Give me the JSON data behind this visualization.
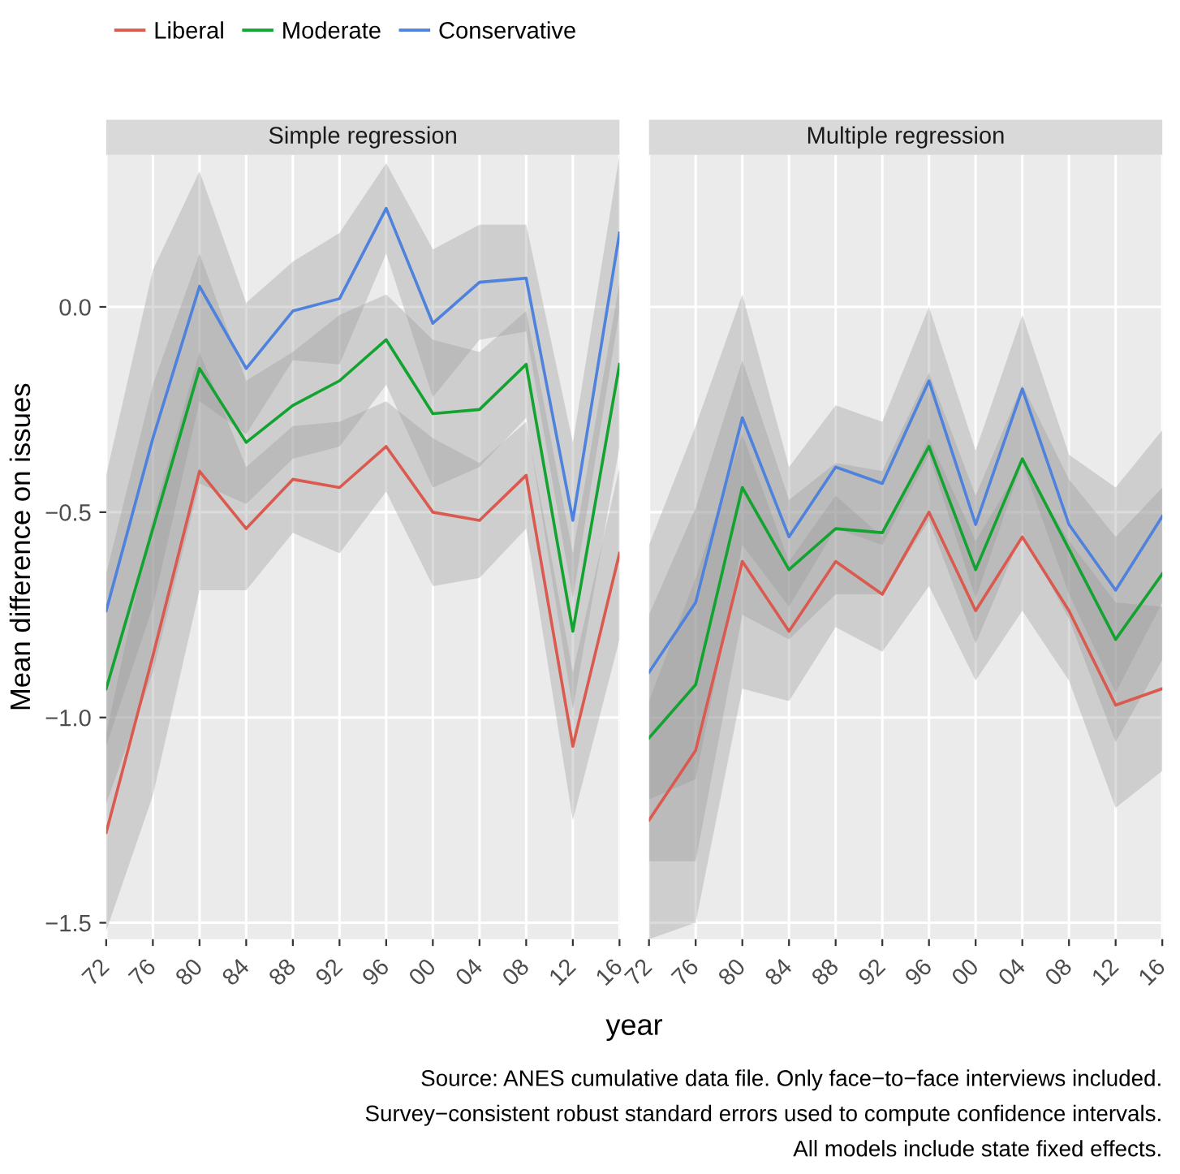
{
  "chart_data": [
    {
      "type": "line",
      "title": "Simple regression",
      "xlabel": "year",
      "ylabel": "Mean difference on issues",
      "legend": "top",
      "grid": true,
      "x": [
        1972,
        1976,
        1980,
        1984,
        1988,
        1992,
        1996,
        2000,
        2004,
        2008,
        2012,
        2016
      ],
      "xlim": [
        1972,
        2016
      ],
      "ylim": [
        -1.54,
        0.37
      ],
      "xticks": [
        {
          "value": 1972,
          "label": "72"
        },
        {
          "value": 1976,
          "label": "76"
        },
        {
          "value": 1980,
          "label": "80"
        },
        {
          "value": 1984,
          "label": "84"
        },
        {
          "value": 1988,
          "label": "88"
        },
        {
          "value": 1992,
          "label": "92"
        },
        {
          "value": 1996,
          "label": "96"
        },
        {
          "value": 2000,
          "label": "00"
        },
        {
          "value": 2004,
          "label": "04"
        },
        {
          "value": 2008,
          "label": "08"
        },
        {
          "value": 2012,
          "label": "12"
        },
        {
          "value": 2016,
          "label": "16"
        }
      ],
      "yticks": [
        {
          "value": -1.5,
          "label": "−1.5"
        },
        {
          "value": -1.0,
          "label": "−1.0"
        },
        {
          "value": -0.5,
          "label": "−0.5"
        },
        {
          "value": 0.0,
          "label": "0.0"
        }
      ],
      "series": [
        {
          "name": "Liberal",
          "color": "#db5a4f",
          "values": [
            -1.28,
            -0.85,
            -0.4,
            -0.54,
            -0.42,
            -0.44,
            -0.34,
            -0.5,
            -0.52,
            -0.41,
            -1.07,
            -0.6
          ],
          "lower": [
            -1.52,
            -1.19,
            -0.69,
            -0.69,
            -0.55,
            -0.6,
            -0.45,
            -0.68,
            -0.66,
            -0.54,
            -1.25,
            -0.81
          ],
          "upper": [
            -1.04,
            -0.51,
            -0.11,
            -0.39,
            -0.29,
            -0.28,
            -0.23,
            -0.32,
            -0.38,
            -0.28,
            -0.89,
            -0.39
          ]
        },
        {
          "name": "Moderate",
          "color": "#13a330",
          "values": [
            -0.93,
            -0.54,
            -0.15,
            -0.33,
            -0.24,
            -0.18,
            -0.08,
            -0.26,
            -0.25,
            -0.14,
            -0.79,
            -0.14
          ],
          "lower": [
            -1.21,
            -0.89,
            -0.43,
            -0.48,
            -0.37,
            -0.34,
            -0.19,
            -0.44,
            -0.39,
            -0.27,
            -0.98,
            -0.34
          ],
          "upper": [
            -0.65,
            -0.19,
            0.13,
            -0.18,
            -0.11,
            -0.02,
            0.03,
            -0.08,
            -0.11,
            -0.01,
            -0.6,
            0.06
          ]
        },
        {
          "name": "Conservative",
          "color": "#4f82dc",
          "values": [
            -0.74,
            -0.32,
            0.05,
            -0.15,
            -0.01,
            0.02,
            0.24,
            -0.04,
            0.06,
            0.07,
            -0.52,
            0.18
          ],
          "lower": [
            -1.07,
            -0.73,
            -0.23,
            -0.31,
            -0.13,
            -0.14,
            0.13,
            -0.22,
            -0.08,
            -0.06,
            -0.71,
            -0.01
          ],
          "upper": [
            -0.41,
            0.09,
            0.33,
            0.01,
            0.11,
            0.18,
            0.35,
            0.14,
            0.2,
            0.2,
            -0.33,
            0.37
          ]
        }
      ],
      "annotations": [
        "Source: ANES cumulative data file. Only face−to−face interviews included.",
        "Survey−consistent robust standard errors used to compute confidence intervals.",
        "All models include state fixed effects."
      ]
    },
    {
      "type": "line",
      "title": "Multiple regression",
      "grid": true,
      "tick_labels": "x",
      "x": [
        1972,
        1976,
        1980,
        1984,
        1988,
        1992,
        1996,
        2000,
        2004,
        2008,
        2012,
        2016
      ],
      "xlim": [
        1972,
        2016
      ],
      "ylim": [
        -1.54,
        0.37
      ],
      "xticks": [
        {
          "value": 1972,
          "label": "72"
        },
        {
          "value": 1976,
          "label": "76"
        },
        {
          "value": 1980,
          "label": "80"
        },
        {
          "value": 1984,
          "label": "84"
        },
        {
          "value": 1988,
          "label": "88"
        },
        {
          "value": 1992,
          "label": "92"
        },
        {
          "value": 1996,
          "label": "96"
        },
        {
          "value": 2000,
          "label": "00"
        },
        {
          "value": 2004,
          "label": "04"
        },
        {
          "value": 2008,
          "label": "08"
        },
        {
          "value": 2012,
          "label": "12"
        },
        {
          "value": 2016,
          "label": "16"
        }
      ],
      "yticks": [
        {
          "value": -1.5,
          "label": null
        },
        {
          "value": -1.0,
          "label": null
        },
        {
          "value": -0.5,
          "label": null
        },
        {
          "value": 0.0,
          "label": null
        }
      ],
      "series": [
        {
          "color": "#db5a4f",
          "values": [
            -1.25,
            -1.08,
            -0.62,
            -0.79,
            -0.62,
            -0.7,
            -0.5,
            -0.74,
            -0.56,
            -0.74,
            -0.97,
            -0.93
          ],
          "lower": [
            -1.54,
            -1.5,
            -0.93,
            -0.96,
            -0.78,
            -0.84,
            -0.68,
            -0.91,
            -0.74,
            -0.91,
            -1.22,
            -1.13
          ],
          "upper": [
            -0.96,
            -0.66,
            -0.31,
            -0.62,
            -0.46,
            -0.56,
            -0.32,
            -0.57,
            -0.38,
            -0.57,
            -0.72,
            -0.73
          ]
        },
        {
          "color": "#13a330",
          "values": [
            -1.05,
            -0.92,
            -0.44,
            -0.64,
            -0.54,
            -0.55,
            -0.34,
            -0.64,
            -0.37,
            -0.59,
            -0.81,
            -0.65
          ],
          "lower": [
            -1.35,
            -1.35,
            -0.75,
            -0.81,
            -0.7,
            -0.7,
            -0.52,
            -0.82,
            -0.55,
            -0.76,
            -1.06,
            -0.86
          ],
          "upper": [
            -0.75,
            -0.49,
            -0.13,
            -0.47,
            -0.38,
            -0.4,
            -0.16,
            -0.46,
            -0.19,
            -0.42,
            -0.56,
            -0.44
          ]
        },
        {
          "color": "#4f82dc",
          "values": [
            -0.89,
            -0.72,
            -0.27,
            -0.56,
            -0.39,
            -0.43,
            -0.18,
            -0.53,
            -0.2,
            -0.53,
            -0.69,
            -0.51
          ],
          "lower": [
            -1.2,
            -1.15,
            -0.58,
            -0.73,
            -0.54,
            -0.58,
            -0.36,
            -0.71,
            -0.38,
            -0.7,
            -0.94,
            -0.72
          ],
          "upper": [
            -0.58,
            -0.29,
            0.03,
            -0.39,
            -0.24,
            -0.28,
            0.0,
            -0.35,
            -0.02,
            -0.36,
            -0.44,
            -0.3
          ]
        }
      ]
    }
  ]
}
